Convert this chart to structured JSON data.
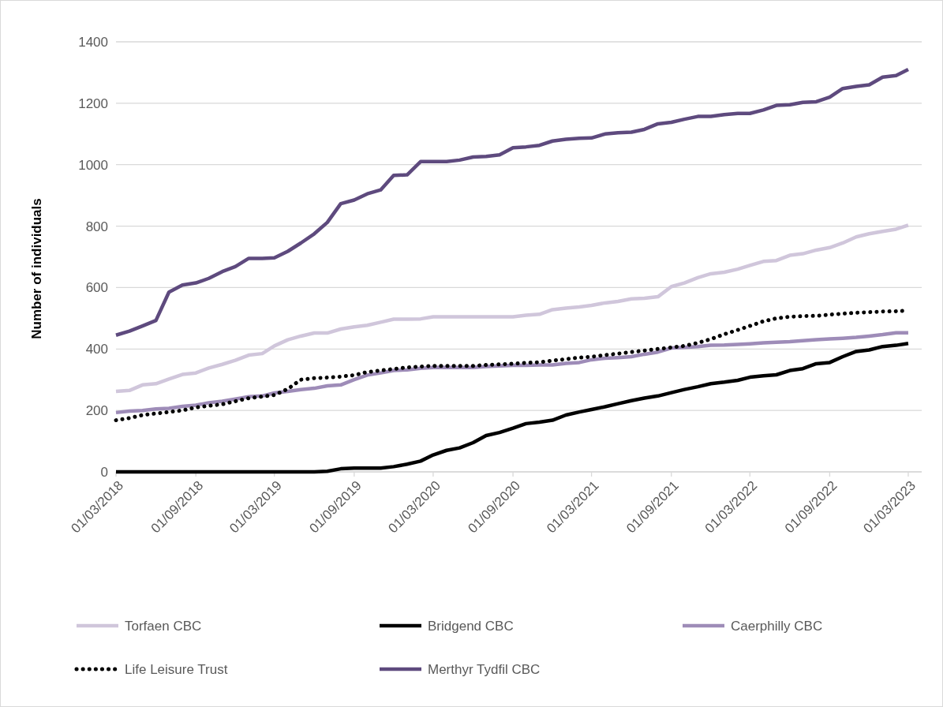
{
  "chart_data": {
    "type": "line",
    "ylabel": "Number of individuals",
    "x": [
      "2018-03",
      "2018-04",
      "2018-05",
      "2018-06",
      "2018-07",
      "2018-08",
      "2018-09",
      "2018-10",
      "2018-11",
      "2018-12",
      "2019-01",
      "2019-02",
      "2019-03",
      "2019-04",
      "2019-05",
      "2019-06",
      "2019-07",
      "2019-08",
      "2019-09",
      "2019-10",
      "2019-11",
      "2019-12",
      "2020-01",
      "2020-02",
      "2020-03",
      "2020-04",
      "2020-05",
      "2020-06",
      "2020-07",
      "2020-08",
      "2020-09",
      "2020-10",
      "2020-11",
      "2020-12",
      "2021-01",
      "2021-02",
      "2021-03",
      "2021-04",
      "2021-05",
      "2021-06",
      "2021-07",
      "2021-08",
      "2021-09",
      "2021-10",
      "2021-11",
      "2021-12",
      "2022-01",
      "2022-02",
      "2022-03",
      "2022-04",
      "2022-05",
      "2022-06",
      "2022-07",
      "2022-08",
      "2022-09",
      "2022-10",
      "2022-11",
      "2022-12",
      "2023-01",
      "2023-02",
      "2023-03"
    ],
    "series": [
      {
        "name": "Torfaen CBC",
        "color": "#d0c6db",
        "line_style": "solid",
        "values": [
          262,
          265,
          283,
          287,
          302,
          317,
          322,
          338,
          350,
          363,
          380,
          385,
          410,
          430,
          442,
          452,
          452,
          465,
          472,
          477,
          487,
          497,
          497,
          498,
          505,
          505,
          505,
          505,
          505,
          505,
          505,
          510,
          513,
          528,
          533,
          537,
          542,
          550,
          555,
          563,
          565,
          570,
          603,
          615,
          632,
          645,
          650,
          660,
          672,
          685,
          688,
          705,
          710,
          722,
          730,
          745,
          765,
          775,
          783,
          790,
          803
        ]
      },
      {
        "name": "Bridgend CBC",
        "color": "#000000",
        "line_style": "solid",
        "values": [
          0,
          0,
          0,
          0,
          0,
          0,
          0,
          0,
          0,
          0,
          0,
          0,
          0,
          0,
          0,
          0,
          2,
          10,
          12,
          12,
          12,
          17,
          25,
          35,
          55,
          70,
          78,
          95,
          118,
          128,
          142,
          157,
          162,
          168,
          185,
          195,
          203,
          212,
          222,
          232,
          240,
          247,
          258,
          268,
          277,
          287,
          292,
          298,
          308,
          313,
          316,
          330,
          336,
          352,
          356,
          375,
          392,
          397,
          408,
          412,
          418
        ]
      },
      {
        "name": "Caerphilly CBC",
        "color": "#9e8cb8",
        "line_style": "solid",
        "values": [
          193,
          198,
          200,
          205,
          207,
          213,
          217,
          225,
          230,
          237,
          245,
          247,
          257,
          262,
          268,
          272,
          280,
          283,
          300,
          315,
          322,
          330,
          332,
          337,
          340,
          340,
          340,
          340,
          343,
          345,
          347,
          347,
          348,
          348,
          353,
          356,
          365,
          370,
          372,
          375,
          383,
          390,
          403,
          405,
          408,
          412,
          413,
          415,
          417,
          420,
          422,
          424,
          427,
          430,
          433,
          435,
          438,
          442,
          447,
          453,
          453
        ]
      },
      {
        "name": "Life Leisure Trust",
        "color": "#000000",
        "line_style": "dotted",
        "values": [
          168,
          175,
          185,
          190,
          195,
          200,
          210,
          215,
          220,
          230,
          240,
          245,
          250,
          270,
          300,
          305,
          307,
          310,
          315,
          325,
          330,
          335,
          340,
          343,
          345,
          345,
          345,
          345,
          348,
          350,
          352,
          355,
          357,
          362,
          367,
          372,
          375,
          380,
          385,
          390,
          395,
          400,
          405,
          410,
          420,
          432,
          448,
          462,
          475,
          490,
          500,
          505,
          507,
          508,
          512,
          515,
          518,
          520,
          522,
          523,
          525
        ]
      },
      {
        "name": "Merthyr Tydfil CBC",
        "color": "#5e4a7e",
        "line_style": "solid",
        "values": [
          445,
          458,
          475,
          493,
          585,
          608,
          615,
          630,
          652,
          668,
          695,
          695,
          697,
          718,
          745,
          775,
          812,
          873,
          885,
          905,
          918,
          965,
          967,
          1010,
          1010,
          1010,
          1015,
          1025,
          1027,
          1032,
          1055,
          1058,
          1063,
          1077,
          1083,
          1086,
          1087,
          1100,
          1104,
          1106,
          1115,
          1133,
          1138,
          1148,
          1157,
          1157,
          1163,
          1167,
          1167,
          1178,
          1193,
          1195,
          1203,
          1205,
          1220,
          1248,
          1255,
          1260,
          1285,
          1290,
          1310
        ]
      }
    ],
    "xlim": [
      "2018-03-01",
      "2023-04-01"
    ],
    "xticks": [
      {
        "value": "2018-03-01",
        "label": "01/03/2018"
      },
      {
        "value": "2018-09-01",
        "label": "01/09/2018"
      },
      {
        "value": "2019-03-01",
        "label": "01/03/2019"
      },
      {
        "value": "2019-09-01",
        "label": "01/09/2019"
      },
      {
        "value": "2020-03-01",
        "label": "01/03/2020"
      },
      {
        "value": "2020-09-01",
        "label": "01/09/2020"
      },
      {
        "value": "2021-03-01",
        "label": "01/03/2021"
      },
      {
        "value": "2021-09-01",
        "label": "01/09/2021"
      },
      {
        "value": "2022-03-01",
        "label": "01/03/2022"
      },
      {
        "value": "2022-09-01",
        "label": "01/09/2022"
      },
      {
        "value": "2023-03-01",
        "label": "01/03/2023"
      }
    ],
    "ylim": [
      0,
      1400
    ],
    "yticks": [
      0,
      200,
      400,
      600,
      800,
      1000,
      1200,
      1400
    ],
    "grid": "y",
    "legend": "bottom",
    "marker": "none"
  }
}
